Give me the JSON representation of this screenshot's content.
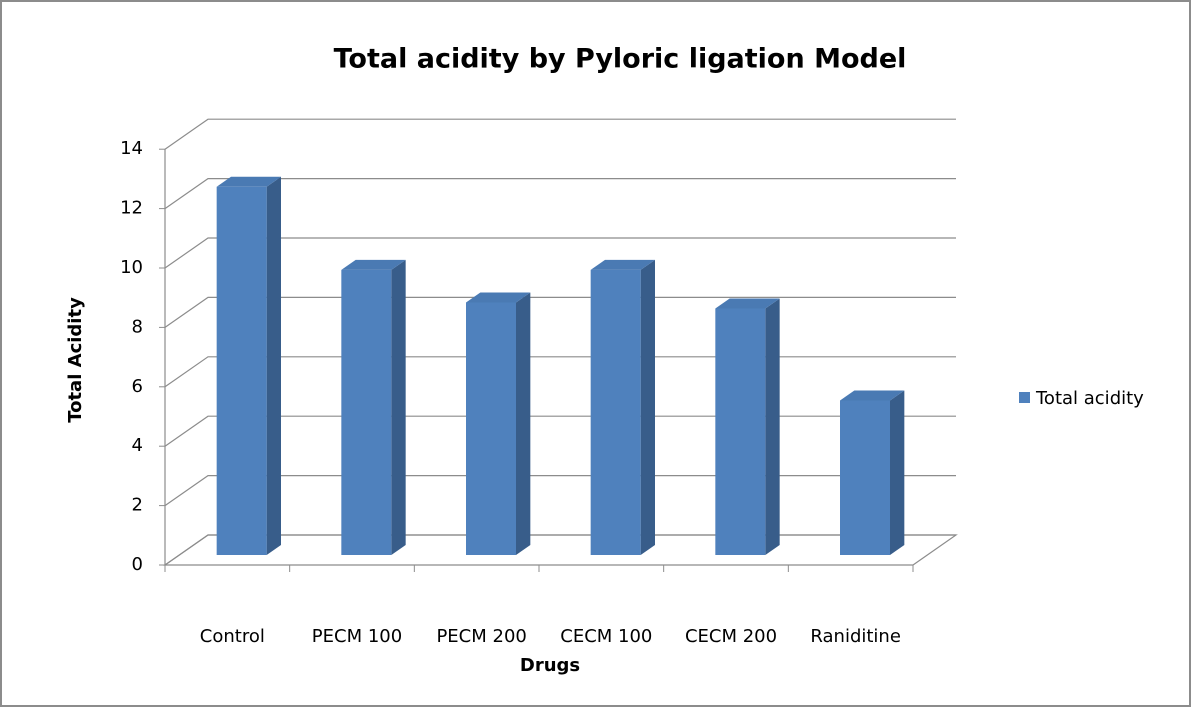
{
  "chart_data": {
    "type": "bar3d",
    "title": "Total acidity by Pyloric ligation Model",
    "x_label": "Drugs",
    "y_label": "Total Acidity",
    "categories": [
      "Control",
      "PECM 100",
      "PECM 200",
      "CECM 100",
      "CECM 200",
      "Raniditine"
    ],
    "series": [
      {
        "name": "Total acidity",
        "color": "#4f81bd",
        "values": [
          12.4,
          9.6,
          8.5,
          9.6,
          8.3,
          5.2
        ]
      }
    ],
    "ylim": [
      0,
      14
    ],
    "yticks": [
      0,
      2,
      4,
      6,
      8,
      10,
      12,
      14
    ],
    "grid": true,
    "legend": "right"
  }
}
